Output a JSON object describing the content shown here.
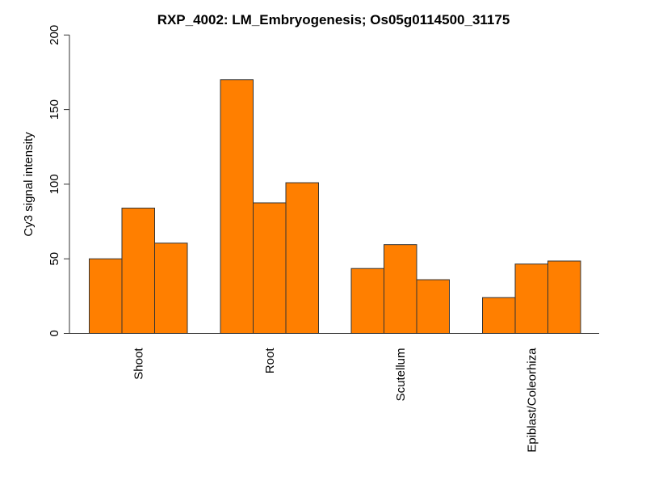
{
  "chart_data": {
    "type": "bar",
    "title": "RXP_4002: LM_Embryogenesis; Os05g0114500_31175",
    "xlabel": "",
    "ylabel": "Cy3 signal intensity",
    "ylim": [
      0,
      200
    ],
    "yticks": [
      0,
      50,
      100,
      150,
      200
    ],
    "grid": false,
    "bar_color": "#ff7f00",
    "categories": [
      "Shoot",
      "Root",
      "Scutellum",
      "Epiblast/Coleorhiza"
    ],
    "values": [
      [
        50,
        84,
        60.5
      ],
      [
        170,
        87.5,
        101
      ],
      [
        43.5,
        59.5,
        36
      ],
      [
        24,
        46.5,
        48.5
      ]
    ]
  }
}
